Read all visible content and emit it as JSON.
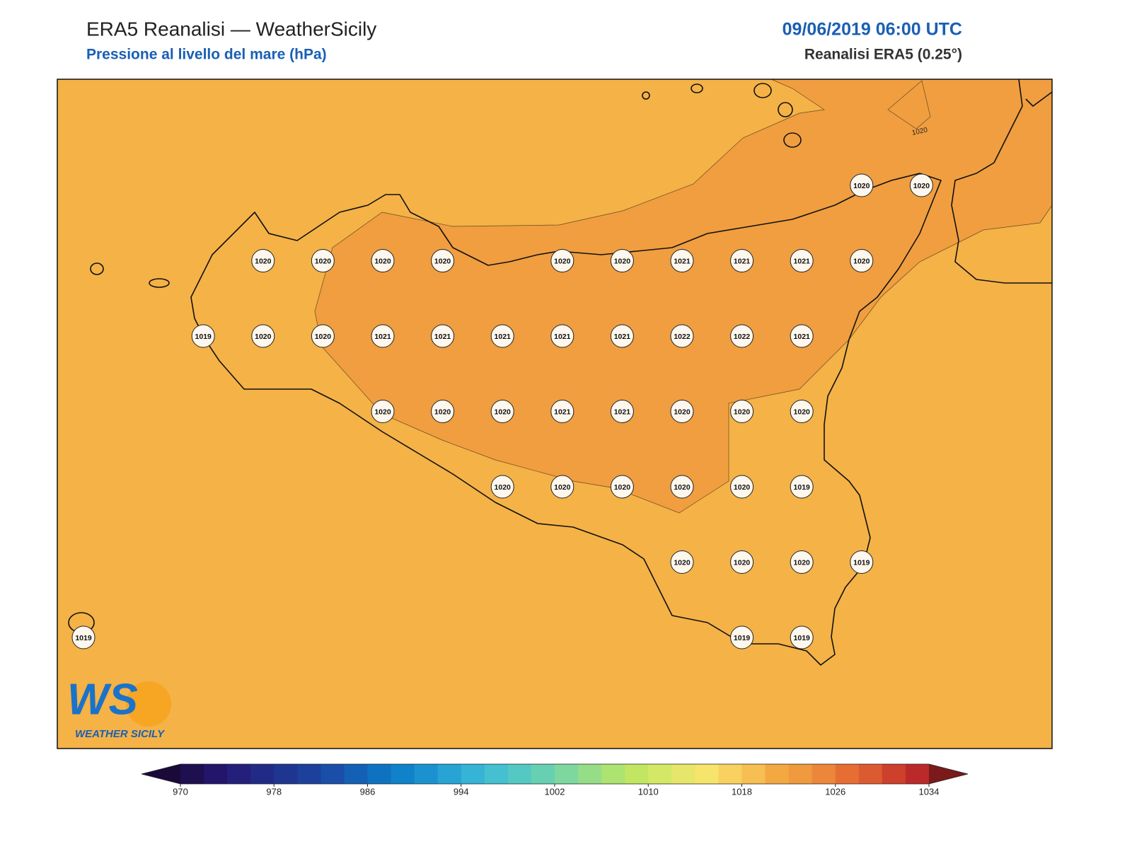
{
  "header": {
    "title": "ERA5 Reanalisi — WeatherSicily",
    "subtitle": "Pressione al livello del mare (hPa)",
    "datetime": "09/06/2019 06:00 UTC",
    "source": "Reanalisi ERA5 (0.25°)"
  },
  "map": {
    "stations": [
      [
        null,
        null,
        null,
        null,
        null,
        null,
        null,
        null,
        null,
        null,
        null,
        null,
        null,
        1020,
        1020
      ],
      [
        null,
        null,
        null,
        1020,
        1020,
        1020,
        1020,
        null,
        1020,
        1020,
        1021,
        1021,
        1021,
        1020,
        null
      ],
      [
        null,
        null,
        1019,
        1020,
        1020,
        1021,
        1021,
        1021,
        1021,
        1021,
        1022,
        1022,
        1021,
        null,
        null
      ],
      [
        null,
        null,
        null,
        null,
        null,
        1020,
        1020,
        1020,
        1021,
        1021,
        1020,
        1020,
        1020,
        null,
        null
      ],
      [
        null,
        null,
        null,
        null,
        null,
        null,
        null,
        1020,
        1020,
        1020,
        1020,
        1020,
        1019,
        null,
        null
      ],
      [
        null,
        null,
        null,
        null,
        null,
        null,
        null,
        null,
        null,
        null,
        1020,
        1020,
        1020,
        1019,
        null
      ],
      [
        1019,
        null,
        null,
        null,
        null,
        null,
        null,
        null,
        null,
        null,
        null,
        1019,
        1019,
        null,
        null
      ]
    ],
    "contour_labels": [
      1020
    ],
    "logo": {
      "mark": "WS",
      "name": "WEATHER SICILY"
    }
  },
  "colorbar": {
    "range": [
      970,
      1034
    ],
    "ticks": [
      970,
      978,
      986,
      994,
      1002,
      1010,
      1018,
      1026,
      1034
    ],
    "colors": [
      "#1e0f4f",
      "#23156a",
      "#231f7a",
      "#212b86",
      "#1f3690",
      "#1c409c",
      "#1a4ea8",
      "#1460b4",
      "#0f72c0",
      "#0f82c9",
      "#1b92cf",
      "#27a3d4",
      "#36b4d5",
      "#44c0d0",
      "#54c8c3",
      "#67d0b2",
      "#7ed79f",
      "#96dd88",
      "#ade370",
      "#c2e663",
      "#d5e866",
      "#e6e66a",
      "#f7e46b",
      "#f9d160",
      "#f7be52",
      "#f4a842",
      "#ef9a3e",
      "#ec863a",
      "#e66e33",
      "#dc5a2f",
      "#cc402c",
      "#bb2a2a"
    ],
    "under_color": "#1a0a3a",
    "over_color": "#7a1a1a"
  }
}
